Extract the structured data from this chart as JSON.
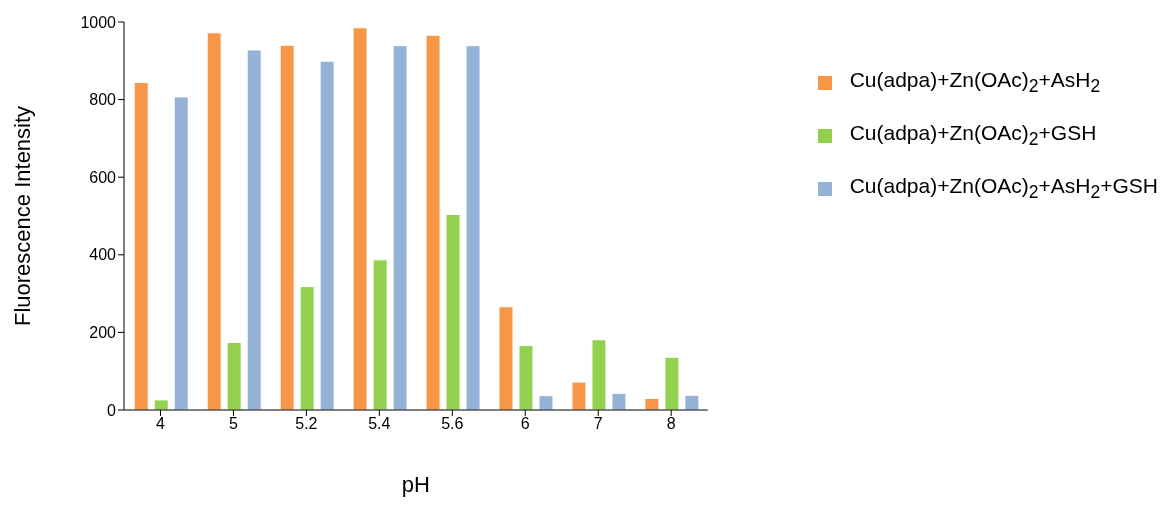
{
  "chart_data": {
    "type": "bar",
    "xlabel": "pH",
    "ylabel": "Fluorescence Intensity",
    "categories": [
      "4",
      "5",
      "5.2",
      "5.4",
      "5.6",
      "6",
      "7",
      "8"
    ],
    "series": [
      {
        "name": "Cu(adpa)+Zn(OAc)$_{2}$+AsH$_{2}$",
        "color": "#f79646",
        "values": [
          844,
          972,
          940,
          985,
          966,
          266,
          72,
          30
        ]
      },
      {
        "name": "Cu(adpa)+Zn(OAc)$_{2}$+GSH",
        "color": "#92d050",
        "values": [
          26,
          174,
          318,
          387,
          504,
          166,
          181,
          136
        ]
      },
      {
        "name": "Cu(adpa)+Zn(OAc)$_{2}$+AsH$_{2}$+GSH",
        "color": "#95b3d7",
        "values": [
          807,
          928,
          899,
          939,
          939,
          37,
          43,
          38
        ]
      }
    ],
    "ylim": [
      0,
      1000
    ],
    "yticks": [
      0,
      200,
      400,
      600,
      800,
      1000
    ],
    "grid": false,
    "legend": "top right"
  }
}
